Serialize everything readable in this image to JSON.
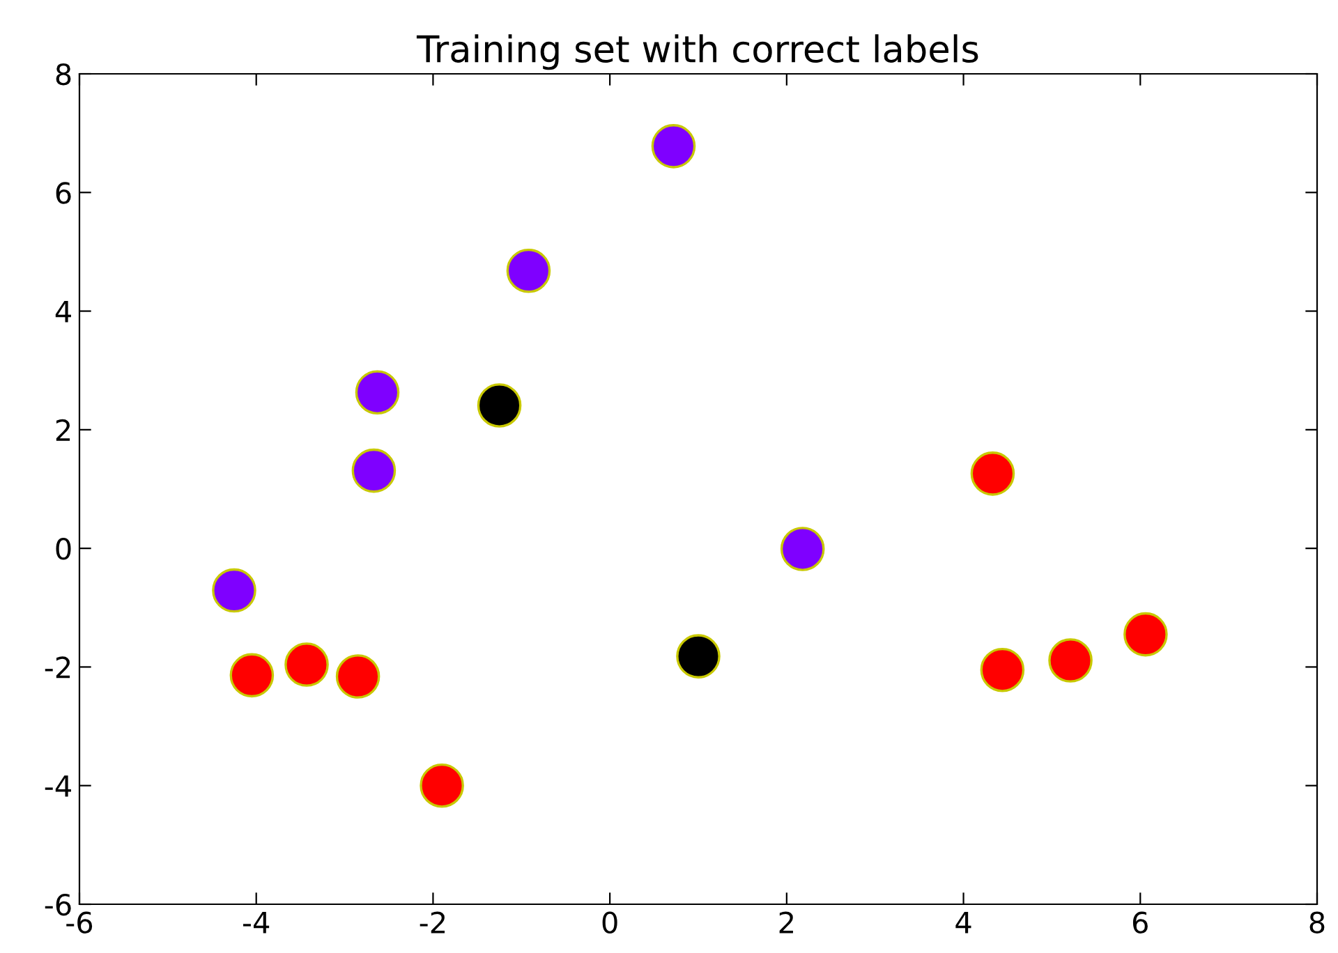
{
  "chart_data": {
    "type": "scatter",
    "title": "Training set with correct labels",
    "xlim": [
      -6,
      8
    ],
    "xticks": [
      -6,
      -4,
      -2,
      0,
      2,
      4,
      6,
      8
    ],
    "ylim": [
      -6,
      8
    ],
    "yticks": [
      -6,
      -4,
      -2,
      0,
      2,
      4,
      6,
      8
    ],
    "grid": false,
    "marker": "circle",
    "series": [
      {
        "color": "#7f00ff",
        "x": [
          0.72,
          -0.92,
          -2.63,
          -2.67,
          -4.25,
          2.18
        ],
        "values": [
          6.78,
          4.68,
          2.63,
          1.31,
          -0.71,
          -0.01
        ]
      },
      {
        "color": "#000000",
        "x": [
          -1.25,
          1.0
        ],
        "values": [
          2.41,
          -1.82
        ]
      },
      {
        "color": "#ff0000",
        "x": [
          4.33,
          -4.05,
          -3.43,
          -2.85,
          -1.9,
          4.44,
          5.21,
          6.06
        ],
        "values": [
          1.26,
          -2.14,
          -1.96,
          -2.16,
          -4.0,
          -2.05,
          -1.89,
          -1.45
        ]
      }
    ]
  }
}
